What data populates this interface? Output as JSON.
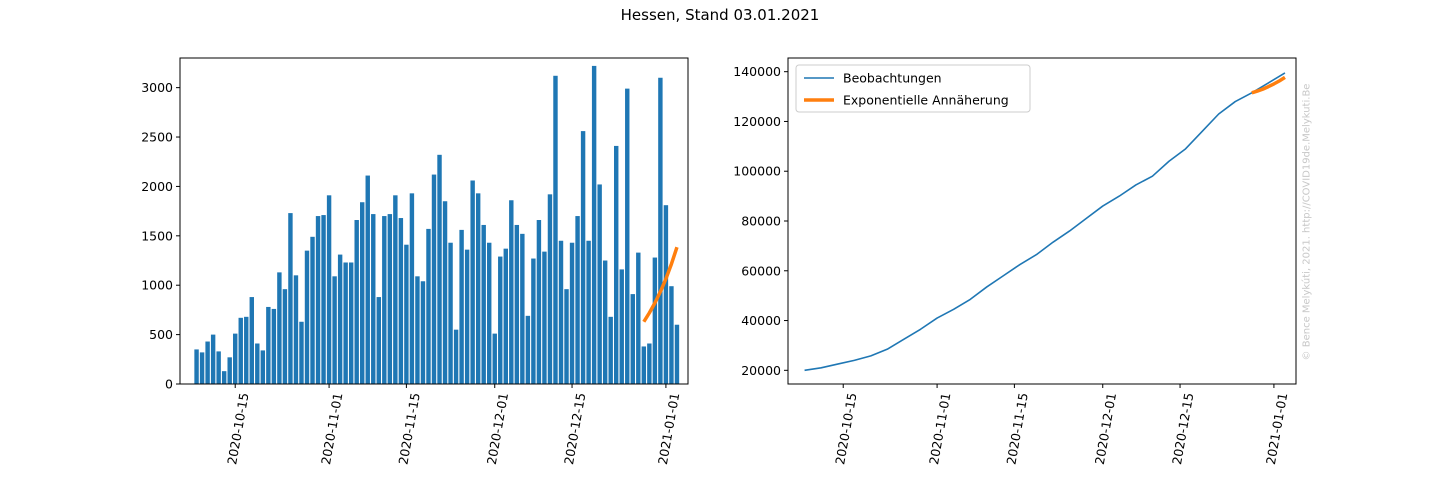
{
  "title": "Hessen, Stand 03.01.2021",
  "credit": "© Bence Melykúti, 2021. http://COVID19de.Melykuti.Be",
  "colors": {
    "blue": "#1f77b4",
    "orange": "#ff7f0e"
  },
  "chart_data": [
    {
      "type": "bar",
      "x_start": "2020-10-08",
      "x_end": "2021-01-03",
      "xlim": [
        "2020-10-05",
        "2021-01-05"
      ],
      "ylim": [
        0,
        3300
      ],
      "xticks": [
        "2020-10-15",
        "2020-11-01",
        "2020-11-15",
        "2020-12-01",
        "2020-12-15",
        "2021-01-01"
      ],
      "yticks": [
        0,
        500,
        1000,
        1500,
        2000,
        2500,
        3000
      ],
      "values": [
        350,
        320,
        430,
        500,
        330,
        130,
        270,
        510,
        670,
        680,
        880,
        410,
        340,
        780,
        760,
        1130,
        960,
        1730,
        1100,
        630,
        1350,
        1490,
        1700,
        1710,
        1910,
        1090,
        1310,
        1230,
        1230,
        1660,
        1840,
        2110,
        1720,
        880,
        1700,
        1720,
        1910,
        1680,
        1410,
        1930,
        1090,
        1040,
        1570,
        2120,
        2320,
        1850,
        1430,
        550,
        1560,
        1360,
        2060,
        1930,
        1610,
        1430,
        510,
        1290,
        1370,
        1860,
        1610,
        1520,
        690,
        1270,
        1660,
        1340,
        1920,
        3120,
        1450,
        960,
        1430,
        1700,
        2560,
        1450,
        3220,
        2020,
        1250,
        680,
        2410,
        1160,
        2990,
        910,
        1330,
        380,
        410,
        1280,
        3100,
        1810,
        990,
        600
      ],
      "fit": {
        "x": [
          "2020-12-28",
          "2020-12-29",
          "2020-12-30",
          "2020-12-31",
          "2021-01-01",
          "2021-01-02",
          "2021-01-03"
        ],
        "y": [
          630,
          720,
          820,
          935,
          1065,
          1215,
          1385
        ]
      }
    },
    {
      "type": "line",
      "xlim": [
        "2020-10-05",
        "2021-01-05"
      ],
      "ylim": [
        14500,
        145500
      ],
      "xticks": [
        "2020-10-15",
        "2020-11-01",
        "2020-11-15",
        "2020-12-01",
        "2020-12-15",
        "2021-01-01"
      ],
      "yticks": [
        20000,
        40000,
        60000,
        80000,
        100000,
        120000,
        140000
      ],
      "legend_position": "upper-left",
      "series": [
        {
          "name": "Beobachtungen",
          "x": [
            "2020-10-08",
            "2020-10-11",
            "2020-10-14",
            "2020-10-17",
            "2020-10-20",
            "2020-10-23",
            "2020-10-26",
            "2020-10-29",
            "2020-11-01",
            "2020-11-04",
            "2020-11-07",
            "2020-11-10",
            "2020-11-13",
            "2020-11-16",
            "2020-11-19",
            "2020-11-22",
            "2020-11-25",
            "2020-11-28",
            "2020-12-01",
            "2020-12-04",
            "2020-12-07",
            "2020-12-10",
            "2020-12-13",
            "2020-12-16",
            "2020-12-19",
            "2020-12-22",
            "2020-12-25",
            "2020-12-28",
            "2020-12-31",
            "2021-01-03"
          ],
          "y": [
            20000,
            21000,
            22500,
            24000,
            25800,
            28500,
            32500,
            36500,
            41000,
            44500,
            48500,
            53500,
            58000,
            62500,
            66500,
            71500,
            76000,
            81000,
            86000,
            90000,
            94500,
            98000,
            104000,
            109000,
            116000,
            123000,
            128000,
            131500,
            135500,
            139500
          ]
        },
        {
          "name": "Exponentielle Annäherung",
          "x": [
            "2020-12-28",
            "2020-12-29",
            "2020-12-30",
            "2020-12-31",
            "2021-01-01",
            "2021-01-02",
            "2021-01-03"
          ],
          "y": [
            131500,
            132200,
            133000,
            134000,
            135100,
            136300,
            137700
          ]
        }
      ]
    }
  ]
}
